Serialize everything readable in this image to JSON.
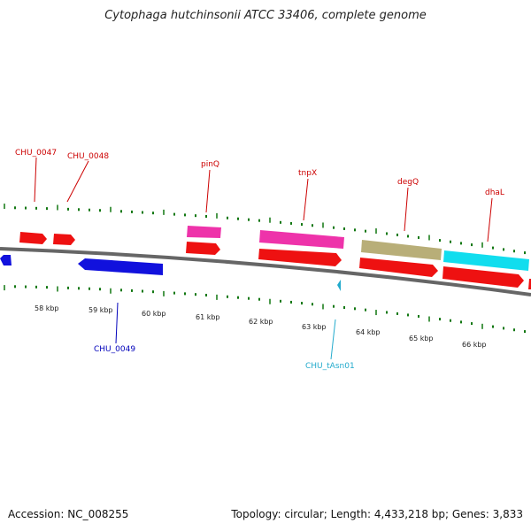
{
  "title": "Cytophaga hutchinsonii ATCC 33406, complete genome",
  "footer": {
    "accession": "Accession: NC_008255",
    "summary": "Topology: circular; Length: 4,433,218 bp; Genes: 3,833"
  },
  "colors": {
    "red_cds": "#ee1111",
    "pink": "#ee33aa",
    "olive": "#b8ae78",
    "cyan": "#11ddee",
    "blue": "#1111dd",
    "label_red": "#cc0000",
    "label_blue": "#0000bb",
    "label_cyan": "#22aacc",
    "tick_green": "#117711",
    "backbone": "#666666"
  },
  "kbp_labels": [
    "58 kbp",
    "59 kbp",
    "60 kbp",
    "61 kbp",
    "62 kbp",
    "63 kbp",
    "64 kbp",
    "65 kbp",
    "66 kbp"
  ],
  "gene_labels": {
    "chu_0047": "CHU_0047",
    "chu_0048": "CHU_0048",
    "pinq": "pinQ",
    "tnpx": "tnpX",
    "degq": "degQ",
    "dhal": "dhaL",
    "chu_0049": "CHU_0049",
    "chu_tasn01": "CHU_tAsn01"
  }
}
